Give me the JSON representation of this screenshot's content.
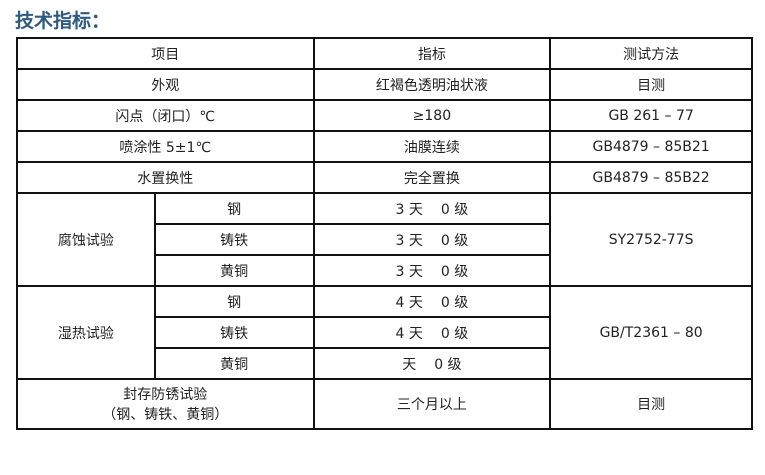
{
  "title": "技术指标：",
  "header": [
    "项目",
    "指标",
    "测试方法"
  ],
  "simple_rows": [
    {
      "item": "外观",
      "value": "红褐色透明油状液",
      "method": "目测"
    },
    {
      "item": "闪点（闭口）℃",
      "value": "≥180",
      "method": "GB 261 – 77"
    },
    {
      "item": "喷涂性 5±1℃",
      "value": "油膜连续",
      "method": "GB4879 – 85B21"
    },
    {
      "item": "水置换性",
      "value": "完全置换",
      "method": "GB4879 – 85B22"
    }
  ],
  "corrosion": {
    "item": "腐蚀试验",
    "method": "SY2752-77S",
    "rows": [
      {
        "metal": "钢",
        "days": "3 天",
        "grade": "0 级"
      },
      {
        "metal": "铸铁",
        "days": "3 天",
        "grade": "0 级"
      },
      {
        "metal": "黄铜",
        "days": "3 天",
        "grade": "0 级"
      }
    ]
  },
  "humidity": {
    "item": "湿热试验",
    "method": "GB/T2361 – 80",
    "rows": [
      {
        "metal": "钢",
        "days": "4 天",
        "grade": "0 级"
      },
      {
        "metal": "铸铁",
        "days": "4 天",
        "grade": "0 级"
      },
      {
        "metal": "黄铜",
        "days": "天",
        "grade": "0 级"
      }
    ]
  },
  "storage": {
    "item_line1": "封存防锈试验",
    "item_line2": "（钢、铸铁、黄铜）",
    "value": "三个月以上",
    "method": "目测"
  }
}
